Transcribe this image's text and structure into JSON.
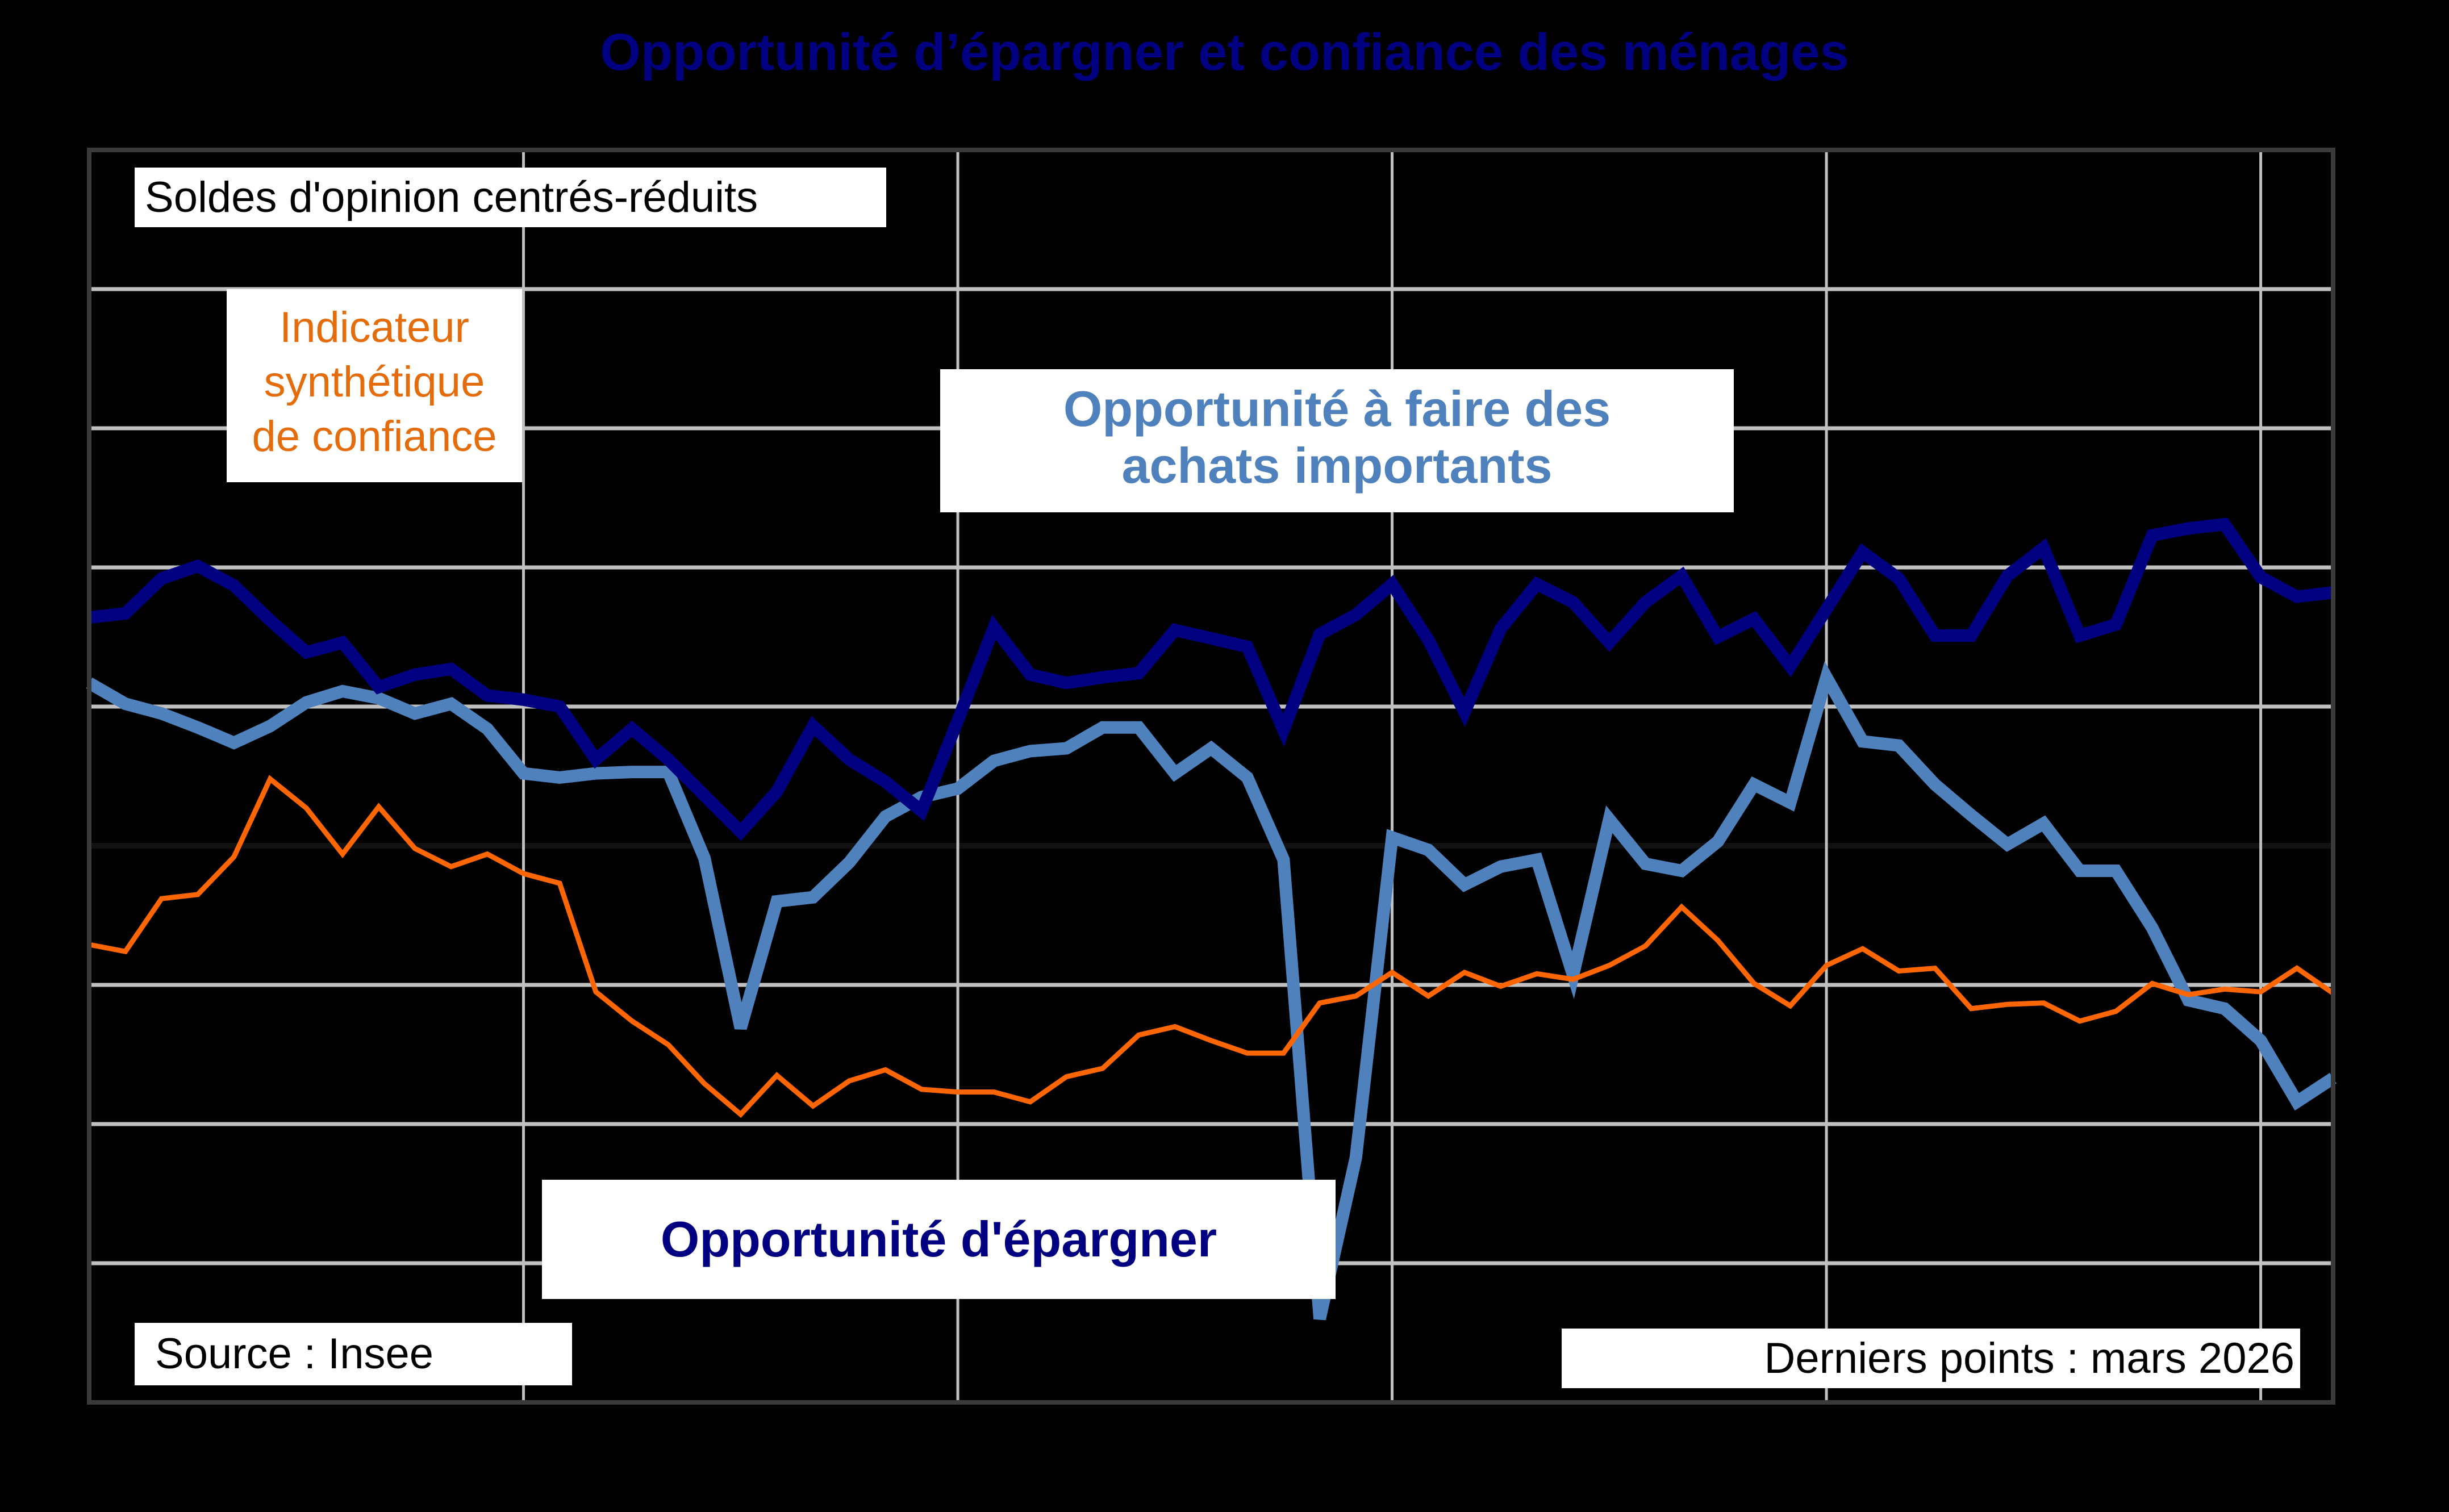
{
  "title": "Opportunité d’épargner et confiance des ménages",
  "annotations": {
    "units": "Soldes d'opinion centrés-réduits",
    "confidence_label": [
      "Indicateur",
      "synthétique",
      "de confiance"
    ],
    "purchases_label": [
      "Opportunité à faire des",
      "achats importants"
    ],
    "saving_label": "Opportunité d'épargner",
    "source": "Source : Insee",
    "last_points": "Derniers points : mars 2026"
  },
  "colors": {
    "background": "#000000",
    "title": "#000080",
    "grid": "#C0C0C0",
    "saving": "#000080",
    "purchases": "#4F81BD",
    "confidence": "#FF6600"
  },
  "chart_data": {
    "type": "line",
    "title": "Opportunité d’épargner et confiance des ménages",
    "ylabel": "Soldes d'opinion centrés-réduits",
    "xlabel": "",
    "ylim": [
      -4,
      5
    ],
    "yticks": [
      5,
      4,
      3,
      2,
      1,
      0,
      -1,
      -2,
      -3,
      -4
    ],
    "xticks": [
      "2021",
      "2022",
      "2023",
      "2024",
      "2025",
      "2026"
    ],
    "grid": true,
    "x_start": "2021-01",
    "x_end": "2026-03",
    "frequency": "monthly",
    "series": [
      {
        "name": "Opportunité d'épargner",
        "color": "#000080",
        "width": "thick",
        "values": [
          1.64,
          1.67,
          1.92,
          2.01,
          1.87,
          1.62,
          1.39,
          1.46,
          1.14,
          1.23,
          1.27,
          1.08,
          1.05,
          1.0,
          0.62,
          0.84,
          0.62,
          0.36,
          0.1,
          0.39,
          0.86,
          0.62,
          0.46,
          0.25,
          0.9,
          1.57,
          1.23,
          1.17,
          1.21,
          1.24,
          1.55,
          1.49,
          1.43,
          0.83,
          1.52,
          1.66,
          1.88,
          1.48,
          0.96,
          1.56,
          1.88,
          1.75,
          1.46,
          1.75,
          1.94,
          1.5,
          1.63,
          1.29,
          1.7,
          2.11,
          1.92,
          1.51,
          1.51,
          1.94,
          2.14,
          1.51,
          1.59,
          2.23,
          2.28,
          2.31,
          1.93,
          1.79,
          1.82
        ]
      },
      {
        "name": "Opportunité à faire des achats importants",
        "color": "#4F81BD",
        "width": "thick",
        "values": [
          1.17,
          1.02,
          0.95,
          0.85,
          0.74,
          0.86,
          1.03,
          1.11,
          1.06,
          0.95,
          1.02,
          0.84,
          0.52,
          0.49,
          0.52,
          0.53,
          0.53,
          -0.09,
          -1.31,
          -0.4,
          -0.37,
          -0.12,
          0.21,
          0.35,
          0.41,
          0.61,
          0.68,
          0.7,
          0.85,
          0.85,
          0.52,
          0.7,
          0.49,
          -0.1,
          -3.4,
          -2.24,
          0.06,
          -0.03,
          -0.28,
          -0.15,
          -0.1,
          -0.93,
          0.19,
          -0.13,
          -0.18,
          0.03,
          0.44,
          0.31,
          1.21,
          0.75,
          0.72,
          0.44,
          0.22,
          0.01,
          0.16,
          -0.18,
          -0.18,
          -0.59,
          -1.11,
          -1.17,
          -1.4,
          -1.84,
          -1.67
        ]
      },
      {
        "name": "Indicateur synthétique de confiance",
        "color": "#FF6600",
        "width": "thin",
        "values": [
          -0.71,
          -0.76,
          -0.38,
          -0.35,
          -0.08,
          0.48,
          0.27,
          -0.06,
          0.28,
          -0.02,
          -0.15,
          -0.06,
          -0.2,
          -0.27,
          -1.05,
          -1.26,
          -1.43,
          -1.71,
          -1.93,
          -1.65,
          -1.87,
          -1.69,
          -1.61,
          -1.75,
          -1.77,
          -1.77,
          -1.84,
          -1.66,
          -1.6,
          -1.36,
          -1.3,
          -1.4,
          -1.49,
          -1.49,
          -1.13,
          -1.08,
          -0.91,
          -1.08,
          -0.91,
          -1.01,
          -0.92,
          -0.96,
          -0.86,
          -0.72,
          -0.44,
          -0.68,
          -0.99,
          -1.15,
          -0.86,
          -0.74,
          -0.9,
          -0.88,
          -1.17,
          -1.14,
          -1.13,
          -1.26,
          -1.19,
          -0.99,
          -1.07,
          -1.03,
          -1.05,
          -0.88,
          -1.06
        ]
      }
    ]
  }
}
